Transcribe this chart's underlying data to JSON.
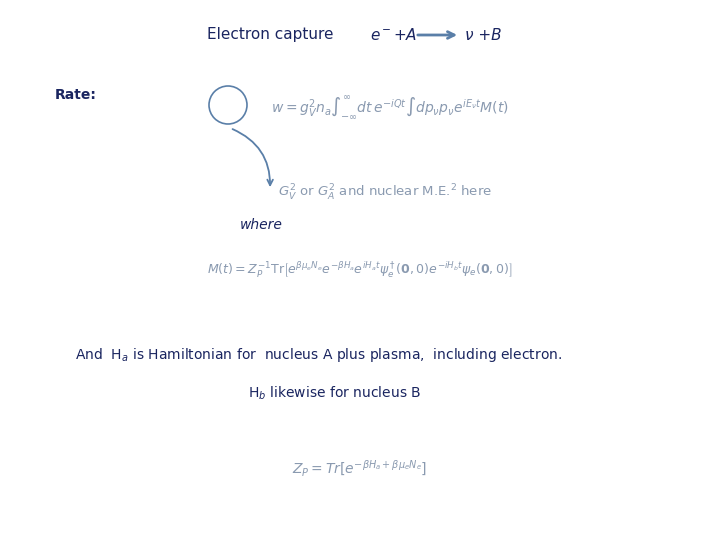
{
  "title_text": "Electron capture",
  "reaction_lhs": "e$^-$+A",
  "reaction_rhs": "ν +B",
  "rate_label": "Rate:",
  "formula1": "$w = g_V^2 n_a \\int_{-\\infty}^{\\infty} dt\\, e^{-iQt} \\int dp_\\nu p_\\nu e^{iE_\\nu t} M(t)$",
  "annotation_text": "$G_V^2$ or $G_A^2$ and nuclear M.E.$^2$ here",
  "where_text": "where",
  "formula2": "$M(t) = Z_P^{-1}\\mathrm{Tr}\\left[e^{\\beta\\mu_e N_e} e^{-\\beta H_a} e^{iH_a t} \\psi_e^\\dagger(\\mathbf{0},0) e^{-iH_b t} \\psi_e(\\mathbf{0},0)\\right]$",
  "text_Ha": "And  H$_a$ is Hamiltonian for  nucleus A plus plasma,  including electron.",
  "text_Hb": "H$_b$ likewise for nucleus B",
  "formula3": "$Z_P = Tr\\left[e^{-\\beta H_a + \\beta\\mu_e N_e}\\right]$",
  "bg_color": "#ffffff",
  "text_color_dark": "#1a2560",
  "text_color_gray": "#8a9ab0",
  "arrow_color": "#5a7fa8",
  "title_fontsize": 11,
  "formula_fontsize": 10,
  "annotation_fontsize": 9.5,
  "label_fontsize": 10,
  "body_fontsize": 10
}
